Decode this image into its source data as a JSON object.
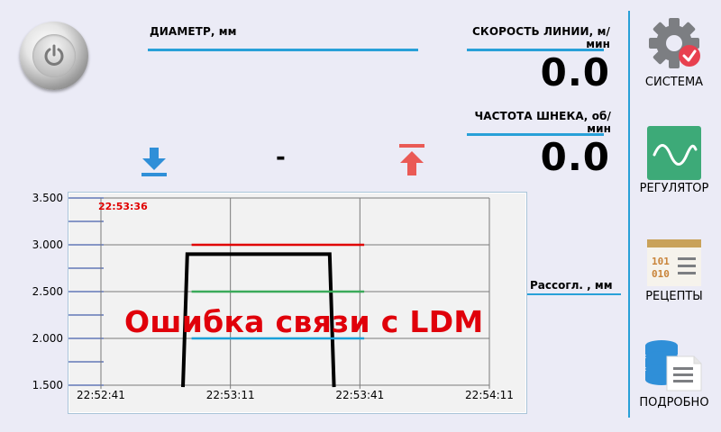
{
  "header": {
    "diameter_label": "ДИАМЕТР, мм",
    "line_speed_label": "СКОРОСТЬ ЛИНИИ, м/мин",
    "line_speed_value": "0.0",
    "screw_freq_label": "ЧАСТОТА ШНЕКА, об/мин",
    "screw_freq_value": "0.0",
    "diameter_value": "-"
  },
  "sidebar": {
    "items": [
      {
        "label": "СИСТЕМА",
        "icon": "gear-check-icon"
      },
      {
        "label": "РЕГУЛЯТОР",
        "icon": "sine-wave-icon"
      },
      {
        "label": "РЕЦЕПТЫ",
        "icon": "recipe-binary-icon"
      },
      {
        "label": "ПОДРОБНО",
        "icon": "database-document-icon"
      }
    ]
  },
  "controls": {
    "decrease_icon": "arrow-down-to-line-icon",
    "increase_icon": "arrow-up-from-line-icon",
    "decrease_color": "#2f8fd8",
    "increase_color": "#ea5a55"
  },
  "chart": {
    "cursor_time": "22:53:36",
    "mismatch_label": "Рассогл. , мм",
    "error_message": "Ошибка связи с LDM"
  },
  "chart_data": {
    "type": "line",
    "ylim": [
      1.5,
      3.5
    ],
    "yticks": [
      "3.500",
      "3.000",
      "2.500",
      "2.000",
      "1.500"
    ],
    "yticks_values": [
      3.5,
      3.0,
      2.5,
      2.0,
      1.5
    ],
    "xticks": [
      "22:52:41",
      "22:53:11",
      "22:53:41",
      "22:54:11"
    ],
    "xlim": [
      "22:52:41",
      "22:54:11"
    ],
    "grid": true,
    "series": [
      {
        "color": "#e00000",
        "points": [
          [
            "22:53:02",
            3.0
          ],
          [
            "22:53:42",
            3.0
          ]
        ]
      },
      {
        "color": "#000000",
        "points": [
          [
            "22:53:00",
            1.48
          ],
          [
            "22:53:01",
            2.9
          ],
          [
            "22:53:34",
            2.9
          ],
          [
            "22:53:35",
            1.48
          ]
        ]
      },
      {
        "color": "#3aaa5a",
        "points": [
          [
            "22:53:02",
            2.5
          ],
          [
            "22:53:42",
            2.5
          ]
        ]
      },
      {
        "color": "#1aa0d8",
        "points": [
          [
            "22:53:02",
            2.0
          ],
          [
            "22:53:42",
            2.0
          ]
        ]
      }
    ]
  },
  "colors": {
    "accent": "#28a0d8",
    "background": "#ebebf6",
    "error": "#e0000a"
  }
}
